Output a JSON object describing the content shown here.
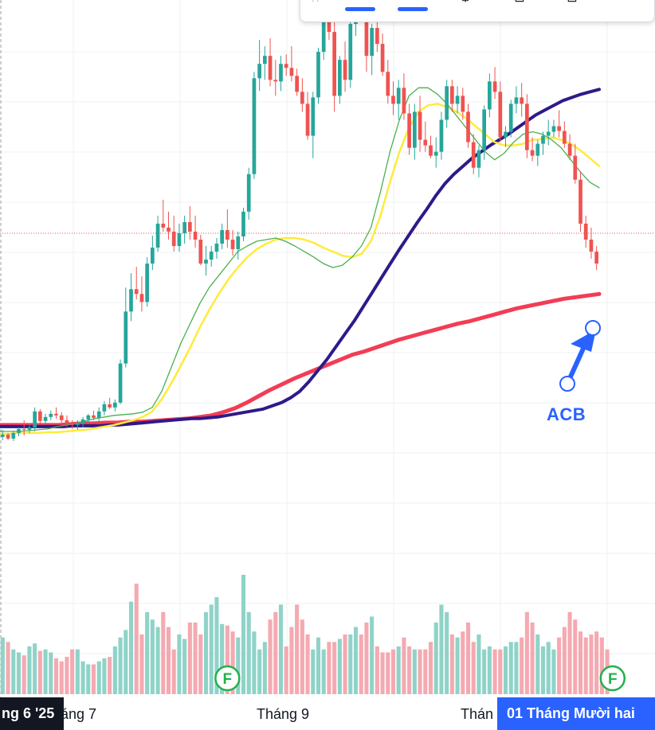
{
  "toolbar": {
    "icons": [
      "drag-grip-icon",
      "line-style-icon",
      "line-style-icon",
      "settings-icon",
      "lock-icon",
      "delete-icon"
    ]
  },
  "annotation": {
    "label": "ACB",
    "color": "#2962ff"
  },
  "x_axis": {
    "labels": [
      {
        "text": "áng 7"
      },
      {
        "text": "Tháng 9"
      },
      {
        "text": "Thán"
      }
    ],
    "cursor_left": "ng 6 '25",
    "cursor_right": "01 Tháng Mười hai"
  },
  "events": [
    "F",
    "F"
  ],
  "colors": {
    "up": "#26a69a",
    "down": "#ef5350",
    "vol_up": "#8fd3c8",
    "vol_down": "#f5a9b1",
    "ma_fast": "#4caf50",
    "ma_mid": "#ffeb3b",
    "ma_slow": "#2e1a8a",
    "ma_long": "#f23d55",
    "price_line": "#e05050"
  },
  "chart_data": {
    "type": "candlestick",
    "candles": [
      [
        23,
        32,
        19,
        26
      ],
      [
        26,
        28,
        19,
        21
      ],
      [
        21,
        31,
        18,
        28
      ],
      [
        28,
        35,
        24,
        33
      ],
      [
        33,
        44,
        25,
        32
      ],
      [
        32,
        40,
        28,
        35
      ],
      [
        35,
        60,
        30,
        55
      ],
      [
        55,
        58,
        40,
        43
      ],
      [
        43,
        52,
        38,
        48
      ],
      [
        48,
        56,
        44,
        52
      ],
      [
        52,
        60,
        46,
        50
      ],
      [
        50,
        54,
        40,
        44
      ],
      [
        44,
        50,
        36,
        40
      ],
      [
        40,
        44,
        33,
        38
      ],
      [
        38,
        44,
        32,
        40
      ],
      [
        40,
        48,
        35,
        45
      ],
      [
        45,
        52,
        40,
        50
      ],
      [
        50,
        56,
        44,
        47
      ],
      [
        47,
        60,
        43,
        55
      ],
      [
        55,
        68,
        50,
        64
      ],
      [
        64,
        72,
        58,
        60
      ],
      [
        60,
        70,
        55,
        66
      ],
      [
        66,
        120,
        64,
        115
      ],
      [
        115,
        210,
        110,
        180
      ],
      [
        180,
        228,
        168,
        208
      ],
      [
        208,
        236,
        195,
        202
      ],
      [
        202,
        224,
        180,
        192
      ],
      [
        192,
        248,
        186,
        240
      ],
      [
        240,
        275,
        232,
        260
      ],
      [
        260,
        300,
        255,
        290
      ],
      [
        290,
        320,
        280,
        285
      ],
      [
        285,
        305,
        270,
        280
      ],
      [
        280,
        300,
        255,
        262
      ],
      [
        262,
        290,
        255,
        278
      ],
      [
        278,
        300,
        265,
        292
      ],
      [
        292,
        312,
        270,
        280
      ],
      [
        280,
        300,
        260,
        270
      ],
      [
        270,
        276,
        238,
        240
      ],
      [
        240,
        262,
        225,
        245
      ],
      [
        245,
        262,
        236,
        255
      ],
      [
        255,
        272,
        246,
        265
      ],
      [
        265,
        290,
        258,
        282
      ],
      [
        282,
        308,
        260,
        270
      ],
      [
        270,
        282,
        250,
        258
      ],
      [
        258,
        280,
        245,
        274
      ],
      [
        274,
        310,
        268,
        305
      ],
      [
        305,
        360,
        295,
        352
      ],
      [
        352,
        480,
        346,
        472
      ],
      [
        472,
        520,
        456,
        490
      ],
      [
        490,
        512,
        470,
        500
      ],
      [
        500,
        522,
        462,
        470
      ],
      [
        470,
        495,
        450,
        468
      ],
      [
        468,
        500,
        456,
        490
      ],
      [
        490,
        502,
        475,
        485
      ],
      [
        485,
        512,
        468,
        475
      ],
      [
        475,
        484,
        450,
        455
      ],
      [
        455,
        472,
        430,
        440
      ],
      [
        440,
        455,
        395,
        400
      ],
      [
        400,
        455,
        372,
        448
      ],
      [
        448,
        510,
        440,
        505
      ],
      [
        505,
        565,
        495,
        560
      ],
      [
        560,
        590,
        520,
        530
      ],
      [
        530,
        545,
        430,
        450
      ],
      [
        450,
        500,
        440,
        495
      ],
      [
        495,
        518,
        455,
        470
      ],
      [
        470,
        545,
        460,
        540
      ],
      [
        540,
        580,
        525,
        575
      ],
      [
        575,
        585,
        560,
        565
      ],
      [
        565,
        580,
        480,
        500
      ],
      [
        500,
        540,
        476,
        535
      ],
      [
        535,
        560,
        505,
        515
      ],
      [
        515,
        528,
        475,
        480
      ],
      [
        480,
        495,
        440,
        450
      ],
      [
        450,
        468,
        426,
        440
      ],
      [
        440,
        470,
        420,
        460
      ],
      [
        460,
        478,
        420,
        428
      ],
      [
        428,
        440,
        376,
        385
      ],
      [
        385,
        440,
        370,
        430
      ],
      [
        430,
        450,
        380,
        395
      ],
      [
        395,
        418,
        380,
        388
      ],
      [
        388,
        400,
        372,
        375
      ],
      [
        375,
        398,
        360,
        380
      ],
      [
        380,
        430,
        370,
        420
      ],
      [
        420,
        470,
        410,
        462
      ],
      [
        462,
        470,
        430,
        440
      ],
      [
        440,
        462,
        428,
        450
      ],
      [
        450,
        460,
        420,
        430
      ],
      [
        430,
        440,
        385,
        392
      ],
      [
        392,
        402,
        352,
        360
      ],
      [
        360,
        388,
        348,
        382
      ],
      [
        382,
        438,
        370,
        433
      ],
      [
        433,
        478,
        423,
        468
      ],
      [
        468,
        486,
        446,
        455
      ],
      [
        455,
        468,
        392,
        398
      ],
      [
        398,
        412,
        386,
        405
      ],
      [
        405,
        445,
        398,
        440
      ],
      [
        440,
        462,
        428,
        448
      ],
      [
        448,
        466,
        424,
        440
      ],
      [
        440,
        452,
        372,
        382
      ],
      [
        382,
        398,
        368,
        375
      ],
      [
        375,
        395,
        362,
        390
      ],
      [
        390,
        405,
        376,
        400
      ],
      [
        400,
        420,
        388,
        405
      ],
      [
        405,
        420,
        398,
        412
      ],
      [
        412,
        432,
        398,
        406
      ],
      [
        406,
        418,
        385,
        390
      ],
      [
        390,
        402,
        370,
        375
      ],
      [
        375,
        390,
        340,
        345
      ],
      [
        345,
        355,
        280,
        290
      ],
      [
        290,
        300,
        260,
        270
      ],
      [
        270,
        285,
        246,
        255
      ],
      [
        255,
        262,
        232,
        240
      ]
    ],
    "volume": [
      38,
      35,
      30,
      28,
      26,
      32,
      34,
      29,
      30,
      28,
      24,
      22,
      25,
      30,
      30,
      22,
      20,
      20,
      22,
      24,
      25,
      32,
      38,
      43,
      62,
      74,
      40,
      55,
      50,
      45,
      55,
      45,
      30,
      40,
      37,
      48,
      48,
      40,
      55,
      60,
      65,
      47,
      46,
      42,
      38,
      80,
      55,
      42,
      30,
      35,
      50,
      55,
      60,
      32,
      45,
      60,
      50,
      40,
      30,
      38,
      30,
      35,
      35,
      37,
      40,
      40,
      45,
      40,
      48,
      52,
      32,
      28,
      28,
      30,
      32,
      38,
      32,
      30,
      30,
      30,
      35,
      48,
      60,
      55,
      40,
      38,
      42,
      48,
      35,
      40,
      30,
      32,
      30,
      30,
      32,
      35,
      35,
      38,
      55,
      48,
      40,
      32,
      35,
      30,
      38,
      45,
      55,
      50,
      42,
      38,
      40,
      42,
      38,
      30
    ],
    "ma_fast": [
      30,
      30,
      30,
      31,
      32,
      33,
      36,
      38,
      40,
      43,
      46,
      48,
      50,
      51,
      52,
      54,
      60,
      80,
      110,
      140,
      165,
      190,
      210,
      225,
      240,
      255,
      262,
      268,
      270,
      272,
      268,
      262,
      255,
      248,
      240,
      235,
      238,
      248,
      262,
      285,
      330,
      380,
      420,
      450,
      460,
      460,
      452,
      440,
      425,
      410,
      395,
      380,
      370,
      378,
      392,
      402,
      405,
      402,
      395,
      385,
      370,
      355,
      342,
      335
    ],
    "ma_mid": [
      27,
      27,
      28,
      28,
      28,
      29,
      29,
      30,
      31,
      32,
      34,
      36,
      38,
      41,
      44,
      48,
      55,
      70,
      90,
      112,
      135,
      160,
      182,
      202,
      220,
      235,
      248,
      258,
      265,
      270,
      272,
      272,
      270,
      266,
      260,
      255,
      250,
      248,
      252,
      268,
      300,
      342,
      380,
      410,
      430,
      438,
      440,
      436,
      430,
      422,
      412,
      402,
      392,
      388,
      388,
      390,
      395,
      396,
      398,
      395,
      390,
      382,
      372,
      362
    ],
    "ma_slow": [
      36,
      36,
      36,
      36,
      36,
      36,
      36,
      36,
      37,
      37,
      37,
      37,
      38,
      38,
      39,
      40,
      41,
      42,
      43,
      44,
      45,
      46,
      46,
      47,
      48,
      50,
      52,
      54,
      56,
      58,
      62,
      66,
      72,
      80,
      92,
      106,
      120,
      136,
      152,
      168,
      186,
      204,
      222,
      240,
      258,
      275,
      292,
      308,
      325,
      340,
      352,
      362,
      372,
      380,
      388,
      395,
      402,
      410,
      418,
      426,
      432,
      438,
      444,
      448,
      452,
      455,
      458
    ],
    "ma_long": [
      38,
      38,
      38,
      38,
      38,
      38,
      39,
      40,
      40,
      41,
      41,
      42,
      42,
      43,
      44,
      45,
      46,
      48,
      50,
      54,
      59,
      66,
      74,
      82,
      89,
      96,
      102,
      108,
      114,
      120,
      126,
      130,
      135,
      140,
      145,
      149,
      153,
      157,
      161,
      165,
      168,
      172,
      176,
      180,
      184,
      187,
      190,
      193,
      196,
      198,
      200,
      202
    ],
    "current_price_level": 278,
    "event_positions": [
      42,
      114
    ]
  }
}
